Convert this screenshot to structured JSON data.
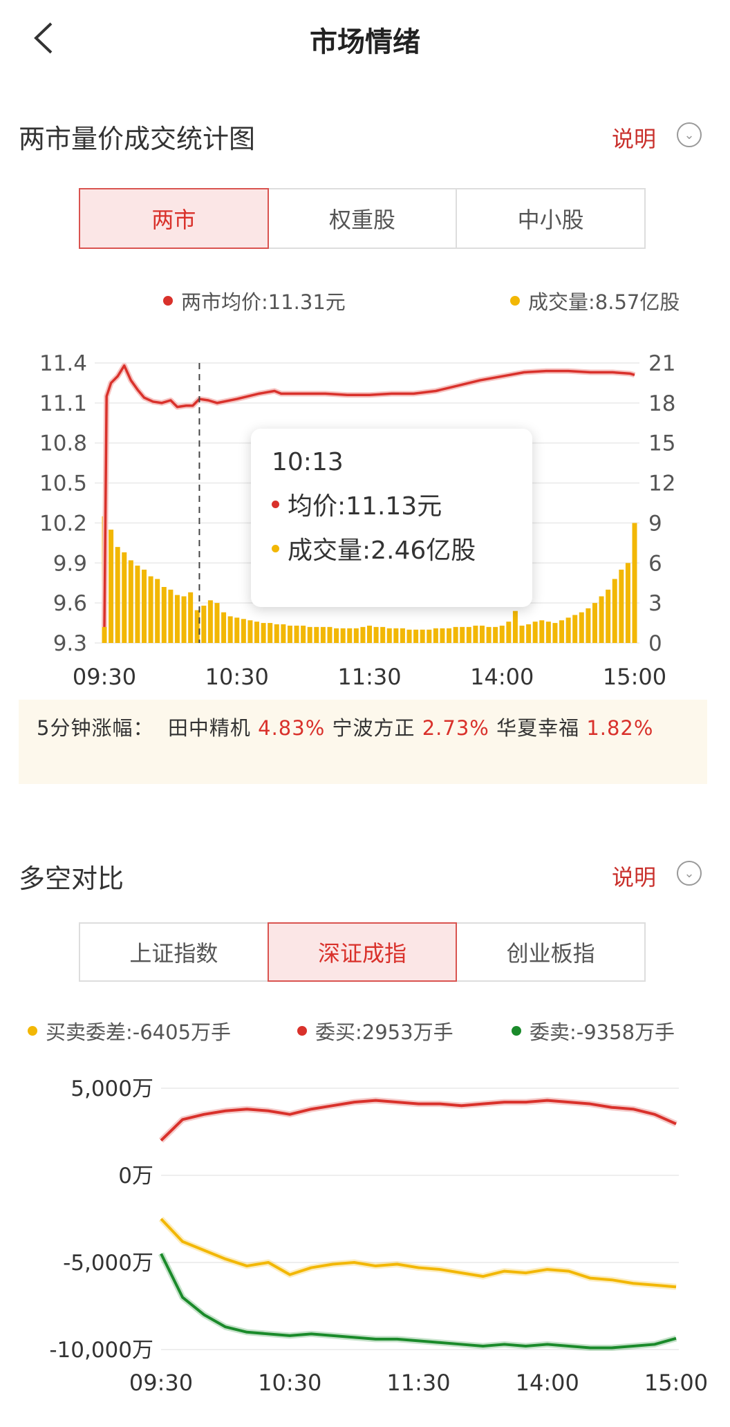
{
  "header": {
    "title": "市场情绪",
    "back_icon": "chevron-left-icon"
  },
  "colors": {
    "red": "#d9312b",
    "yellow": "#f2b705",
    "green": "#1a8a2a",
    "banner_bg": "#fdf8ec"
  },
  "section1": {
    "title": "两市量价成交统计图",
    "explain": "说明",
    "tabs": [
      {
        "label": "两市",
        "active": true
      },
      {
        "label": "权重股",
        "active": false
      },
      {
        "label": "中小股",
        "active": false
      }
    ],
    "legend": {
      "price": "两市均价:11.31元",
      "volume": "成交量:8.57亿股"
    },
    "tooltip": {
      "time": "10:13",
      "price": "均价:11.13元",
      "volume": "成交量:2.46亿股"
    }
  },
  "banner": {
    "label": "5分钟涨幅：",
    "items": [
      {
        "name": "田中精机",
        "change": "4.83%"
      },
      {
        "name": "宁波方正",
        "change": "2.73%"
      },
      {
        "name": "华夏幸福",
        "change": "1.82%"
      }
    ]
  },
  "section2": {
    "title": "多空对比",
    "explain": "说明",
    "tabs": [
      {
        "label": "上证指数",
        "active": false
      },
      {
        "label": "深证成指",
        "active": true
      },
      {
        "label": "创业板指",
        "active": false
      }
    ],
    "legend": {
      "diff": "买卖委差:-6405万手",
      "buy": "委买:2953万手",
      "sell": "委卖:-9358万手"
    }
  },
  "chart_data": [
    {
      "type": "line+bar",
      "y_left": {
        "ticks": [
          "11.4",
          "11.1",
          "10.8",
          "10.5",
          "10.2",
          "9.9",
          "9.6",
          "9.3"
        ],
        "range": [
          9.3,
          11.4
        ]
      },
      "y_right": {
        "ticks": [
          "21",
          "18",
          "15",
          "12",
          "9",
          "6",
          "3",
          "0"
        ],
        "range": [
          0,
          21
        ]
      },
      "x_ticks": [
        "09:30",
        "10:30",
        "11:30",
        "14:00",
        "15:00"
      ],
      "grid": true,
      "cursor_time": "10:13",
      "price": [
        [
          "09:30",
          9.42
        ],
        [
          "09:31",
          11.15
        ],
        [
          "09:33",
          11.25
        ],
        [
          "09:36",
          11.3
        ],
        [
          "09:39",
          11.38
        ],
        [
          "09:42",
          11.27
        ],
        [
          "09:45",
          11.2
        ],
        [
          "09:48",
          11.14
        ],
        [
          "09:52",
          11.11
        ],
        [
          "09:56",
          11.1
        ],
        [
          "10:00",
          11.12
        ],
        [
          "10:03",
          11.07
        ],
        [
          "10:07",
          11.08
        ],
        [
          "10:10",
          11.08
        ],
        [
          "10:13",
          11.13
        ],
        [
          "10:17",
          11.12
        ],
        [
          "10:21",
          11.1
        ],
        [
          "10:30",
          11.13
        ],
        [
          "10:40",
          11.17
        ],
        [
          "10:47",
          11.19
        ],
        [
          "10:50",
          11.17
        ],
        [
          "11:00",
          11.17
        ],
        [
          "11:10",
          11.17
        ],
        [
          "11:20",
          11.16
        ],
        [
          "11:30",
          11.16
        ],
        [
          "13:10",
          11.17
        ],
        [
          "13:20",
          11.17
        ],
        [
          "13:30",
          11.19
        ],
        [
          "13:40",
          11.23
        ],
        [
          "13:50",
          11.27
        ],
        [
          "14:00",
          11.3
        ],
        [
          "14:10",
          11.33
        ],
        [
          "14:20",
          11.34
        ],
        [
          "14:30",
          11.34
        ],
        [
          "14:40",
          11.33
        ],
        [
          "14:50",
          11.33
        ],
        [
          "14:58",
          11.32
        ],
        [
          "15:00",
          11.31
        ]
      ],
      "volume": [
        9.5,
        8.5,
        7.2,
        6.8,
        6.2,
        5.8,
        5.5,
        5.0,
        4.8,
        4.2,
        4.0,
        3.6,
        3.5,
        3.8,
        2.46,
        2.8,
        3.2,
        3.0,
        2.3,
        2.0,
        1.9,
        1.8,
        1.7,
        1.6,
        1.5,
        1.5,
        1.4,
        1.4,
        1.3,
        1.3,
        1.3,
        1.2,
        1.2,
        1.2,
        1.2,
        1.1,
        1.1,
        1.1,
        1.1,
        1.2,
        1.3,
        1.2,
        1.2,
        1.1,
        1.1,
        1.1,
        1.0,
        1.0,
        1.0,
        1.0,
        1.1,
        1.1,
        1.1,
        1.2,
        1.2,
        1.2,
        1.3,
        1.3,
        1.2,
        1.2,
        1.3,
        1.6,
        2.4,
        1.3,
        1.4,
        1.6,
        1.7,
        1.6,
        1.5,
        1.7,
        1.9,
        2.1,
        2.3,
        2.6,
        3.0,
        3.5,
        4.0,
        4.8,
        5.5,
        6.0,
        9.0
      ]
    },
    {
      "type": "line",
      "y_ticks": [
        "5,000万",
        "0万",
        "-5,000万",
        "-10,000万"
      ],
      "range": [
        -10000,
        5000
      ],
      "x_ticks": [
        "09:30",
        "10:30",
        "11:30",
        "14:00",
        "15:00"
      ],
      "grid": true,
      "times": [
        "09:30",
        "09:40",
        "09:50",
        "10:00",
        "10:10",
        "10:20",
        "10:30",
        "10:40",
        "10:50",
        "11:00",
        "11:10",
        "11:20",
        "11:30",
        "13:10",
        "13:20",
        "13:30",
        "13:40",
        "13:50",
        "14:00",
        "14:10",
        "14:20",
        "14:30",
        "14:40",
        "14:50",
        "15:00"
      ],
      "series": [
        {
          "name": "委买",
          "color": "red",
          "values": [
            2000,
            3200,
            3500,
            3700,
            3800,
            3700,
            3500,
            3800,
            4000,
            4200,
            4300,
            4200,
            4100,
            4100,
            4000,
            4100,
            4200,
            4200,
            4300,
            4200,
            4100,
            3900,
            3800,
            3500,
            2953
          ]
        },
        {
          "name": "买卖委差",
          "color": "yellow",
          "values": [
            -2500,
            -3800,
            -4300,
            -4800,
            -5200,
            -5000,
            -5700,
            -5300,
            -5100,
            -5000,
            -5200,
            -5100,
            -5300,
            -5400,
            -5600,
            -5800,
            -5500,
            -5600,
            -5400,
            -5500,
            -5900,
            -6000,
            -6200,
            -6300,
            -6405
          ]
        },
        {
          "name": "委卖",
          "color": "green",
          "values": [
            -4500,
            -7000,
            -8000,
            -8700,
            -9000,
            -9100,
            -9200,
            -9100,
            -9200,
            -9300,
            -9400,
            -9400,
            -9500,
            -9600,
            -9700,
            -9800,
            -9700,
            -9800,
            -9700,
            -9800,
            -9900,
            -9900,
            -9800,
            -9700,
            -9358
          ]
        }
      ]
    }
  ]
}
